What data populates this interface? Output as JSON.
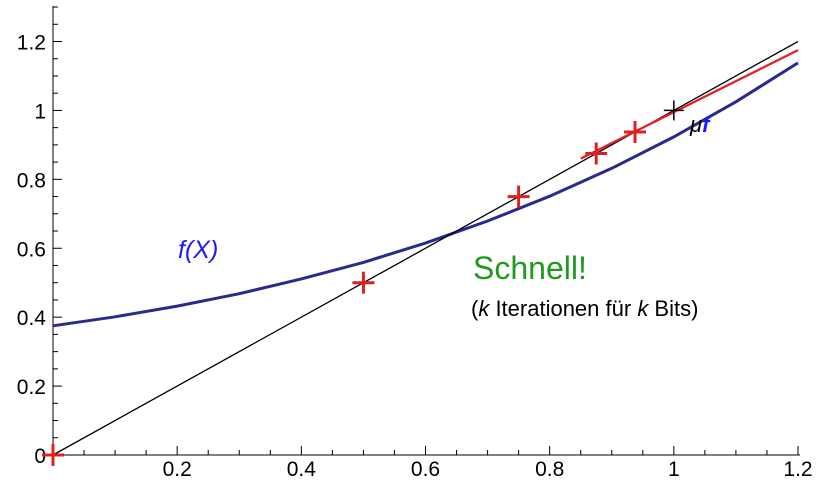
{
  "chart_data": {
    "type": "line",
    "xlim": [
      0,
      1.2
    ],
    "ylim": [
      0,
      1.3
    ],
    "x_ticks": [
      0.2,
      0.4,
      0.6,
      0.8,
      1,
      1.2
    ],
    "x_tick_labels": [
      "0.2",
      "0.4",
      "0.6",
      "0.8",
      "1",
      "1.2"
    ],
    "y_ticks": [
      0,
      0.2,
      0.4,
      0.6,
      0.8,
      1,
      1.2
    ],
    "y_tick_labels": [
      "0",
      "0.2",
      "0.4",
      "0.6",
      "0.8",
      "1",
      "1.2"
    ],
    "grid": false,
    "series": [
      {
        "name": "f(X)",
        "color": "#2a2a8c",
        "x": [
          0,
          0.1,
          0.2,
          0.3,
          0.4,
          0.5,
          0.6,
          0.7,
          0.8,
          0.9,
          1.0,
          1.1,
          1.2
        ],
        "y": [
          0.375,
          0.401,
          0.432,
          0.468,
          0.511,
          0.559,
          0.615,
          0.679,
          0.751,
          0.832,
          0.923,
          1.025,
          1.138
        ]
      },
      {
        "color": "#000000",
        "x": [
          0,
          1.2
        ],
        "y": [
          0,
          1.2
        ]
      },
      {
        "color": "#e02020",
        "x": [
          0.85,
          1.2
        ],
        "y": [
          0.86,
          1.175
        ]
      }
    ],
    "iteration_points": {
      "color": "#e02020",
      "x": [
        0,
        0.5,
        0.75,
        0.875,
        0.9375
      ],
      "y": [
        0,
        0.5,
        0.75,
        0.875,
        0.9375
      ]
    },
    "fixed_point": {
      "x": 1,
      "y": 1,
      "color": "#000000"
    },
    "annotations": {
      "f_label": "f(X)",
      "mu": "μ",
      "mu_f": "f",
      "schnell": "Schnell!",
      "iter_open": "(",
      "iter_k1": "k",
      "iter_mid": " Iterationen für ",
      "iter_k2": "k",
      "iter_end": " Bits)"
    },
    "colors": {
      "curve": "#2a2a8c",
      "label_blue": "#1a1aff",
      "schnell": "#1f9a1f",
      "marker": "#e02020"
    }
  }
}
